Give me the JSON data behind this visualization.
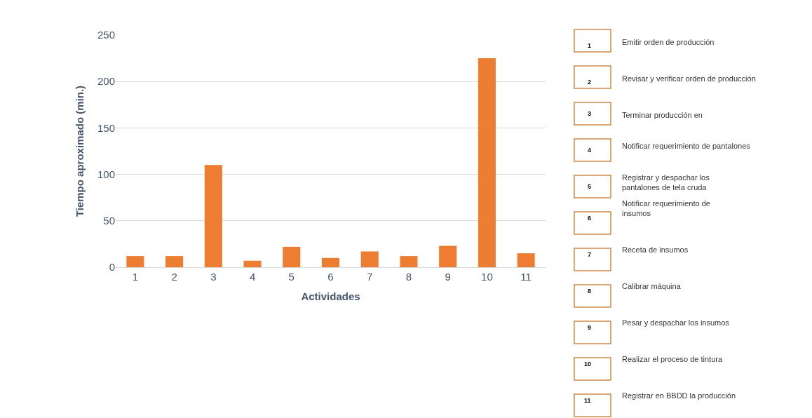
{
  "chart_data": {
    "type": "bar",
    "xlabel": "Actividades",
    "ylabel": "Tiempo aproximado (min.)",
    "categories": [
      "1",
      "2",
      "3",
      "4",
      "5",
      "6",
      "7",
      "8",
      "9",
      "10",
      "11"
    ],
    "values": [
      12,
      12,
      110,
      7,
      22,
      10,
      17,
      12,
      23,
      225,
      15
    ],
    "color": "#ed7d31",
    "ylim": [
      0,
      250
    ],
    "yticks": [
      0,
      50,
      100,
      150,
      200,
      250
    ],
    "grid": "y",
    "annotations": [
      "Emitir orden de producción",
      "Revisar y verificar orden de producción",
      "Terminar producción en",
      "Notificar requerimiento de pantalones",
      "Registrar y despachar los\npantalones de tela cruda",
      "Notificar requerimiento de\ninsumos",
      "Receta de insumos",
      "Calibrar máquina",
      "Pesar y despachar los insumos",
      "Realizar el proceso de tintura",
      "Registrar en BBDD la producción"
    ]
  }
}
